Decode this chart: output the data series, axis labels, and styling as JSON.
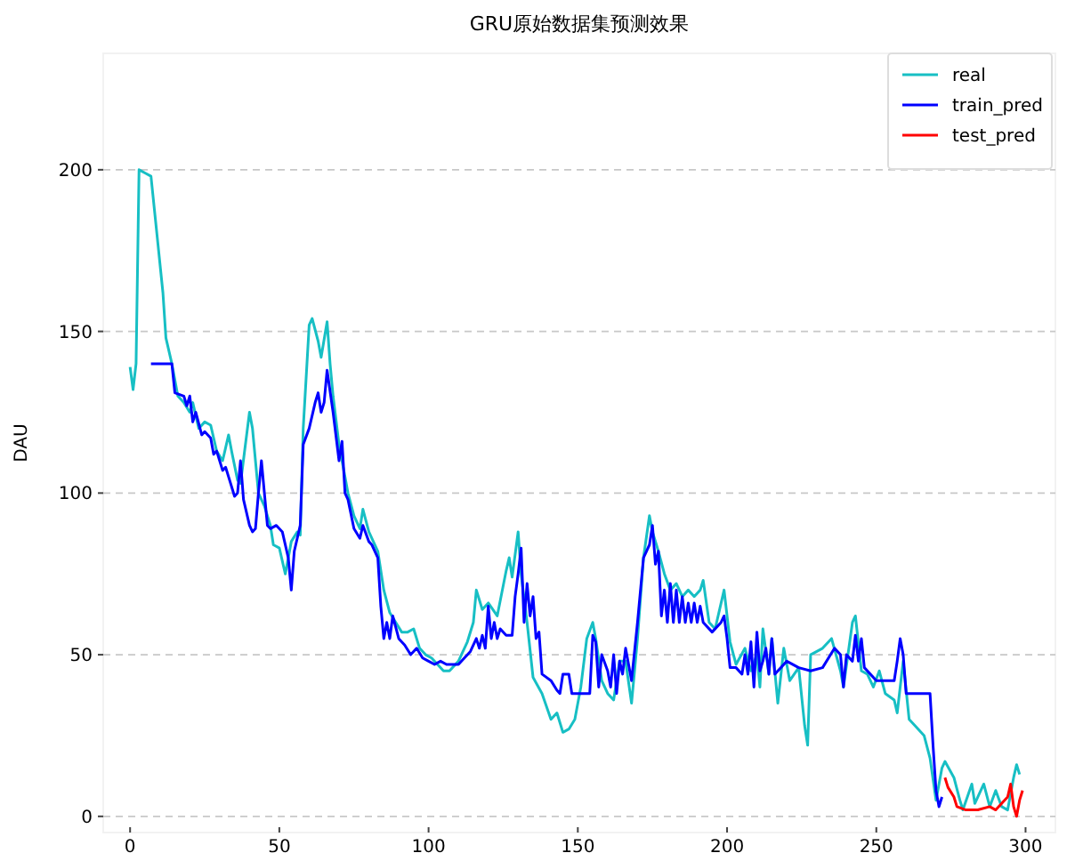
{
  "chart_data": {
    "type": "line",
    "title": "GRU原始数据集预测效果",
    "ylabel": "DAU",
    "xlim": [
      -9,
      310
    ],
    "ylim": [
      -5,
      236
    ],
    "xticks": [
      0,
      50,
      100,
      150,
      200,
      250,
      300
    ],
    "yticks": [
      0,
      50,
      100,
      150,
      200
    ],
    "grid": "y",
    "legend": "top right",
    "marker": "none",
    "line_style": "solid",
    "series": [
      {
        "name": "real",
        "color": "#17bfc4",
        "x": [
          0,
          1,
          2,
          3,
          5,
          7,
          9,
          11,
          12,
          14,
          16,
          18,
          20,
          21,
          23,
          25,
          27,
          29,
          31,
          33,
          34,
          36,
          37,
          40,
          41,
          43,
          45,
          47,
          48,
          50,
          52,
          54,
          56,
          57,
          58,
          60,
          61,
          63,
          64,
          66,
          67,
          68,
          70,
          73,
          75,
          77,
          78,
          80,
          83,
          85,
          87,
          89,
          91,
          93,
          95,
          97,
          99,
          101,
          103,
          105,
          107,
          110,
          113,
          115,
          116,
          118,
          120,
          123,
          126,
          127,
          128,
          130,
          131,
          133,
          135,
          138,
          141,
          143,
          145,
          147,
          149,
          151,
          153,
          155,
          156,
          158,
          160,
          162,
          164,
          166,
          168,
          170,
          172,
          174,
          175,
          177,
          179,
          181,
          183,
          185,
          187,
          189,
          191,
          192,
          194,
          196,
          199,
          201,
          203,
          206,
          208,
          210,
          211,
          212,
          214,
          215,
          217,
          219,
          221,
          224,
          226,
          227,
          228,
          232,
          235,
          238,
          239,
          242,
          243,
          245,
          247,
          249,
          251,
          253,
          256,
          257,
          259,
          261,
          263,
          266,
          268,
          270,
          272,
          273,
          276,
          278,
          279,
          282,
          283,
          286,
          288,
          290,
          292,
          294,
          296,
          297,
          298
        ],
        "values": [
          139,
          132,
          140,
          200,
          199,
          198,
          180,
          162,
          148,
          140,
          130,
          128,
          125,
          128,
          120,
          122,
          121,
          113,
          110,
          118,
          113,
          104,
          103,
          125,
          120,
          100,
          96,
          90,
          84,
          83,
          75,
          85,
          88,
          87,
          120,
          152,
          154,
          147,
          142,
          153,
          140,
          130,
          115,
          100,
          93,
          89,
          95,
          88,
          82,
          70,
          63,
          60,
          57,
          57,
          58,
          52,
          50,
          49,
          47,
          45,
          45,
          48,
          54,
          60,
          70,
          64,
          66,
          62,
          76,
          80,
          74,
          88,
          75,
          60,
          43,
          38,
          30,
          32,
          26,
          27,
          30,
          40,
          55,
          60,
          55,
          42,
          38,
          36,
          48,
          48,
          35,
          55,
          80,
          93,
          88,
          82,
          75,
          70,
          72,
          68,
          70,
          68,
          70,
          73,
          60,
          58,
          70,
          54,
          47,
          52,
          45,
          50,
          40,
          58,
          44,
          55,
          35,
          52,
          42,
          46,
          28,
          22,
          50,
          52,
          55,
          45,
          40,
          60,
          62,
          45,
          44,
          40,
          45,
          38,
          36,
          32,
          48,
          30,
          28,
          25,
          18,
          5,
          15,
          17,
          12,
          5,
          2,
          10,
          4,
          10,
          3,
          8,
          3,
          2,
          12,
          16,
          13
        ]
      },
      {
        "name": "train_pred",
        "color": "#0000ff",
        "x": [
          7,
          14,
          15,
          18,
          19,
          20,
          21,
          22,
          24,
          25,
          27,
          28,
          29,
          31,
          32,
          33,
          35,
          36,
          37,
          38,
          40,
          41,
          42,
          43,
          44,
          45,
          46,
          47,
          49,
          51,
          53,
          54,
          55,
          57,
          58,
          60,
          62,
          63,
          64,
          65,
          66,
          68,
          70,
          71,
          72,
          73,
          75,
          77,
          78,
          80,
          81,
          83,
          84,
          85,
          86,
          87,
          88,
          90,
          92,
          94,
          96,
          98,
          100,
          102,
          104,
          106,
          110,
          112,
          114,
          116,
          117,
          118,
          119,
          120,
          121,
          122,
          123,
          124,
          126,
          128,
          129,
          130,
          131,
          132,
          133,
          134,
          135,
          136,
          137,
          138,
          141,
          143,
          144,
          145,
          147,
          148,
          154,
          155,
          156,
          157,
          158,
          160,
          161,
          162,
          163,
          164,
          165,
          166,
          168,
          170,
          171,
          172,
          174,
          175,
          176,
          177,
          178,
          179,
          180,
          181,
          182,
          183,
          184,
          185,
          186,
          187,
          188,
          189,
          190,
          191,
          192,
          195,
          198,
          199,
          200,
          201,
          203,
          205,
          206,
          207,
          208,
          209,
          210,
          211,
          212,
          213,
          214,
          215,
          216,
          220,
          224,
          228,
          232,
          236,
          238,
          239,
          240,
          242,
          243,
          244,
          245,
          246,
          250,
          256,
          257,
          258,
          259,
          260,
          265,
          268,
          269,
          270,
          271,
          272
        ],
        "values": [
          140,
          140,
          131,
          130,
          127,
          130,
          122,
          125,
          118,
          119,
          117,
          112,
          113,
          107,
          108,
          105,
          99,
          100,
          110,
          98,
          90,
          88,
          89,
          100,
          110,
          100,
          90,
          89,
          90,
          88,
          80,
          70,
          82,
          90,
          115,
          120,
          128,
          131,
          125,
          128,
          138,
          125,
          110,
          116,
          100,
          98,
          89,
          86,
          90,
          85,
          84,
          80,
          65,
          55,
          60,
          55,
          62,
          55,
          53,
          50,
          52,
          49,
          48,
          47,
          48,
          47,
          47,
          49,
          51,
          55,
          52,
          56,
          52,
          65,
          55,
          60,
          55,
          58,
          56,
          56,
          68,
          75,
          83,
          60,
          72,
          62,
          68,
          55,
          57,
          44,
          42,
          39,
          38,
          44,
          44,
          38,
          38,
          56,
          54,
          40,
          50,
          45,
          40,
          50,
          38,
          48,
          44,
          52,
          42,
          60,
          70,
          80,
          84,
          90,
          78,
          82,
          62,
          70,
          60,
          72,
          60,
          70,
          60,
          68,
          60,
          66,
          60,
          66,
          60,
          65,
          60,
          57,
          60,
          62,
          55,
          46,
          46,
          44,
          50,
          44,
          54,
          40,
          57,
          45,
          48,
          52,
          44,
          55,
          44,
          48,
          46,
          45,
          46,
          52,
          50,
          40,
          50,
          48,
          56,
          48,
          55,
          46,
          42,
          42,
          48,
          55,
          50,
          38,
          38,
          38,
          22,
          8,
          3,
          6
        ]
      },
      {
        "name": "test_pred",
        "color": "#ff0000",
        "x": [
          273,
          274,
          276,
          277,
          280,
          284,
          288,
          290,
          292,
          294,
          295,
          296,
          297,
          298,
          299
        ],
        "values": [
          12,
          9,
          6,
          3,
          2,
          2,
          3,
          2,
          4,
          6,
          10,
          3,
          0,
          5,
          8
        ]
      }
    ]
  }
}
